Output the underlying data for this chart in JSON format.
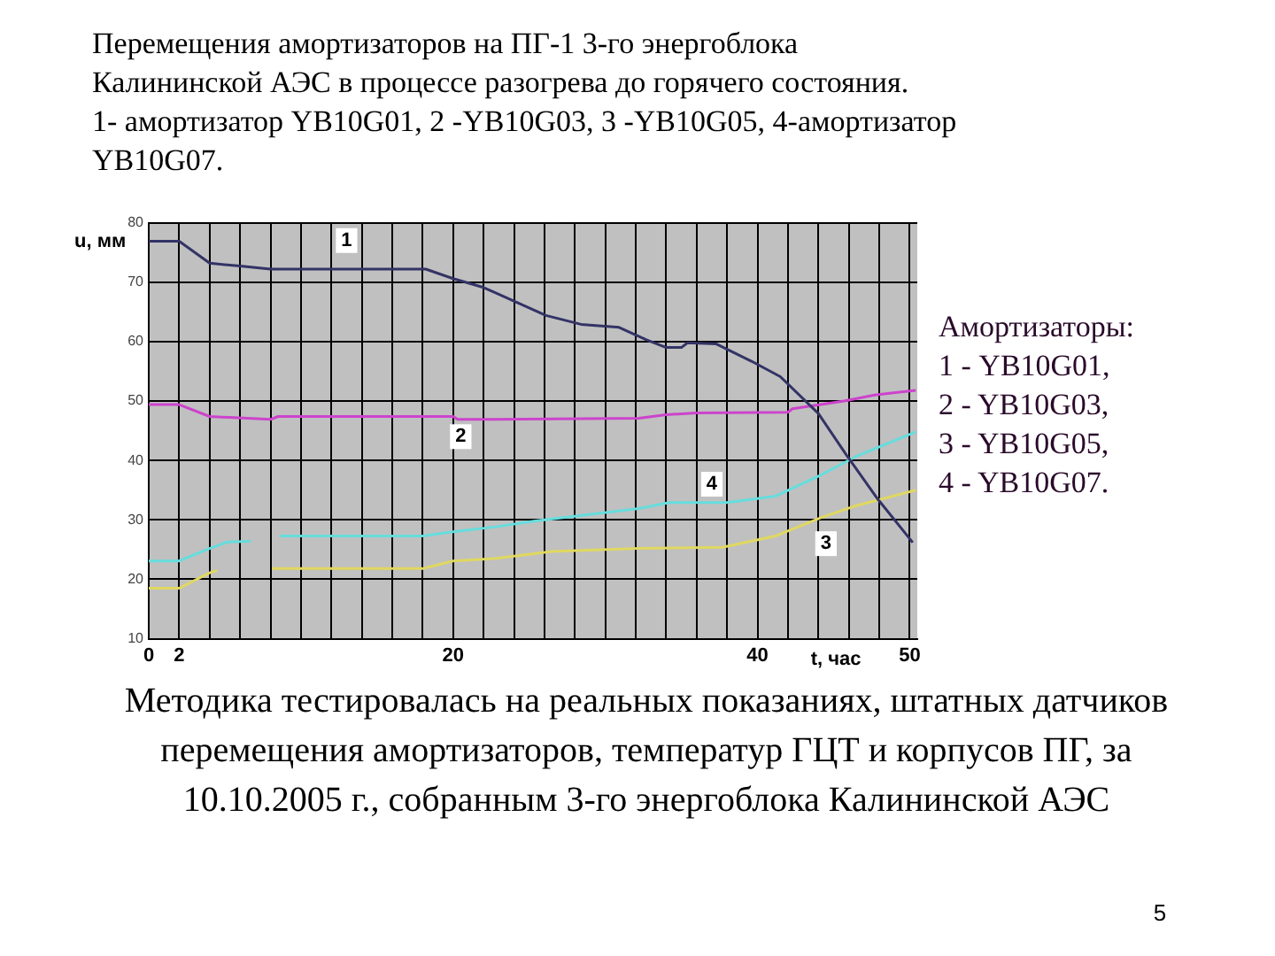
{
  "chart_data": {
    "type": "line",
    "title": "Перемещения амортизаторов на ПГ-1 3-го энергоблока\nКалининской АЭС в процессе разогрева до горячего состояния.\n1- амортизатор YB10G01, 2 -YB10G03, 3 -YB10G05, 4-амортизатор\nYB10G07.",
    "xlabel": "t, час",
    "ylabel": "u, мм",
    "series": [
      {
        "name": "1",
        "color": "#333366",
        "x": [
          0,
          2,
          4,
          6,
          8,
          18.2,
          20,
          22,
          22.7,
          26.1,
          28.4,
          30.9,
          32.7,
          34,
          35,
          35.4,
          37.3,
          39.6,
          41.5,
          44,
          45.9,
          47.9,
          50.2
        ],
        "values": [
          76.9,
          76.9,
          73.2,
          72.7,
          72.2,
          72.2,
          70.6,
          69.1,
          68.3,
          64.4,
          62.9,
          62.4,
          60.3,
          59,
          59,
          59.8,
          59.6,
          56.7,
          54.1,
          47.9,
          40.7,
          33.5,
          26.2
        ]
      },
      {
        "name": "2",
        "color": "#cc44cc",
        "x": [
          0,
          2,
          4,
          8,
          8.5,
          20,
          20.3,
          22.7,
          32.2,
          34,
          36,
          42,
          42.3,
          45.7,
          47.7,
          50.4
        ],
        "values": [
          49.4,
          49.4,
          47.4,
          46.9,
          47.4,
          47.4,
          46.9,
          46.9,
          47.1,
          47.7,
          48,
          48.1,
          48.7,
          50,
          51,
          51.8
        ]
      },
      {
        "name": "3",
        "color": "#e0d860",
        "x": [
          0,
          2,
          4,
          4.5,
          4.7,
          8.1,
          18,
          20,
          22.7,
          26.5,
          32.2,
          37.7,
          41.2,
          44.2,
          46.5,
          50.4
        ],
        "values": [
          18.5,
          18.5,
          21.1,
          21.5,
          null,
          21.8,
          21.8,
          23.1,
          23.5,
          24.7,
          25.2,
          25.4,
          27.3,
          30.4,
          32.4,
          35
        ]
      },
      {
        "name": "4",
        "color": "#66dddd",
        "x": [
          0,
          2,
          4,
          5.2,
          6.7,
          7.5,
          8.6,
          18,
          20,
          22.7,
          25.3,
          32.2,
          34.2,
          38,
          41.2,
          44.2,
          46.5,
          50.4
        ],
        "values": [
          23.1,
          23.1,
          25.2,
          26.3,
          26.4,
          null,
          27.3,
          27.3,
          28,
          28.8,
          29.8,
          31.9,
          32.9,
          32.9,
          34,
          37.6,
          40.7,
          44.8
        ]
      }
    ],
    "xlim": [
      0,
      50.5
    ],
    "xticks": [
      0,
      2,
      {
        "value": 4,
        "label": null
      },
      {
        "value": 6,
        "label": null
      },
      {
        "value": 8,
        "label": null
      },
      {
        "value": 10,
        "label": null
      },
      {
        "value": 12,
        "label": null
      },
      {
        "value": 14,
        "label": null
      },
      {
        "value": 16,
        "label": null
      },
      {
        "value": 18,
        "label": null
      },
      20,
      {
        "value": 22,
        "label": null
      },
      {
        "value": 24,
        "label": null
      },
      {
        "value": 26,
        "label": null
      },
      {
        "value": 28,
        "label": null
      },
      {
        "value": 30,
        "label": null
      },
      {
        "value": 32,
        "label": null
      },
      {
        "value": 34,
        "label": null
      },
      {
        "value": 36,
        "label": null
      },
      {
        "value": 38,
        "label": null
      },
      40,
      {
        "value": 42,
        "label": null
      },
      {
        "value": 44,
        "label": null
      },
      {
        "value": 46,
        "label": null
      },
      {
        "value": 48,
        "label": null
      },
      50
    ],
    "ylim": [
      10,
      80
    ],
    "yticks": [
      10,
      20,
      30,
      40,
      50,
      60,
      70,
      80
    ],
    "grid": true,
    "legend": false,
    "marker": "none",
    "line_style": "solid",
    "annotations": [
      "Амортизаторы:\n1 - YB10G01,\n2 - YB10G03,\n3 - YB10G05,\n4 - YB10G07.",
      "Методика тестировалась на реальных показаниях, штатных датчиков перемещения амортизаторов, температур ГЦТ и корпусов ПГ, за 10.10.2005 г., собранным 3-го энергоблока Калининской АЭС",
      "5"
    ]
  }
}
